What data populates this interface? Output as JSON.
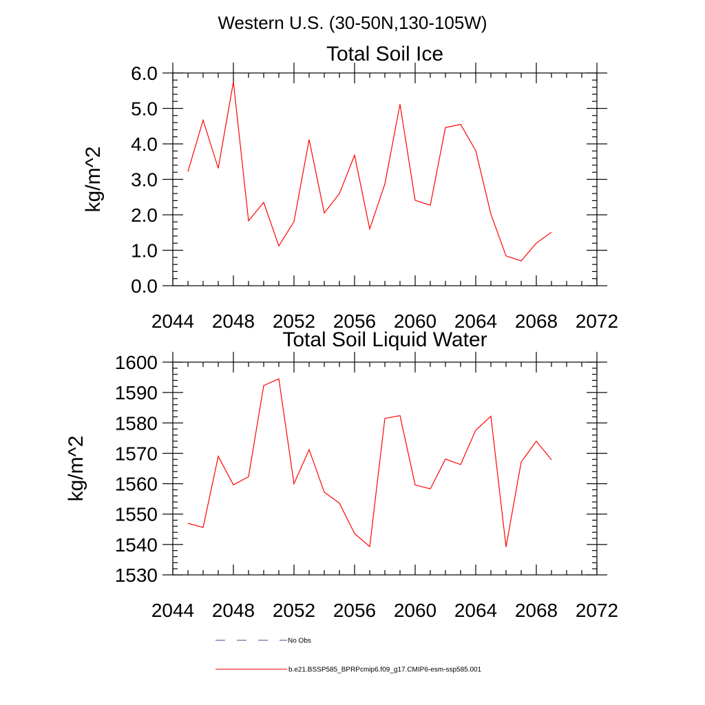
{
  "figure": {
    "title": "Western U.S. (30-50N,130-105W)"
  },
  "chart_data": [
    {
      "type": "line",
      "title": "Total Soil Ice",
      "xlabel": "",
      "ylabel": "kg/m^2",
      "xlim": [
        2044,
        2072
      ],
      "ylim": [
        0,
        6
      ],
      "xticks": [
        2044,
        2048,
        2052,
        2056,
        2060,
        2064,
        2068,
        2072
      ],
      "yticks": [
        0,
        1,
        2,
        3,
        4,
        5,
        6
      ],
      "ytick_labels": [
        "0.0",
        "1.0",
        "2.0",
        "3.0",
        "4.0",
        "5.0",
        "6.0"
      ],
      "x": [
        2045,
        2046,
        2047,
        2048,
        2049,
        2050,
        2051,
        2052,
        2053,
        2054,
        2055,
        2056,
        2057,
        2058,
        2059,
        2060,
        2061,
        2062,
        2063,
        2064,
        2065,
        2066,
        2067,
        2068,
        2069
      ],
      "series": [
        {
          "color": "#ff0000",
          "values": [
            3.22,
            4.67,
            3.31,
            5.75,
            1.83,
            2.35,
            1.12,
            1.81,
            4.12,
            2.05,
            2.6,
            3.68,
            1.6,
            2.87,
            5.12,
            2.41,
            2.27,
            4.46,
            4.55,
            3.81,
            2.02,
            0.84,
            0.7,
            1.2,
            1.51
          ]
        }
      ],
      "grid": false
    },
    {
      "type": "line",
      "title": "Total Soil Liquid Water",
      "xlabel": "",
      "ylabel": "kg/m^2",
      "xlim": [
        2044,
        2072
      ],
      "ylim": [
        1530,
        1600
      ],
      "xticks": [
        2044,
        2048,
        2052,
        2056,
        2060,
        2064,
        2068,
        2072
      ],
      "yticks": [
        1530,
        1540,
        1550,
        1560,
        1570,
        1580,
        1590,
        1600
      ],
      "ytick_labels": [
        "1530",
        "1540",
        "1550",
        "1560",
        "1570",
        "1580",
        "1590",
        "1600"
      ],
      "x": [
        2045,
        2046,
        2047,
        2048,
        2049,
        2050,
        2051,
        2052,
        2053,
        2054,
        2055,
        2056,
        2057,
        2058,
        2059,
        2060,
        2061,
        2062,
        2063,
        2064,
        2065,
        2066,
        2067,
        2068,
        2069
      ],
      "series": [
        {
          "color": "#ff0000",
          "values": [
            1547.0,
            1545.6,
            1569.0,
            1559.6,
            1562.3,
            1592.3,
            1594.5,
            1560.0,
            1571.2,
            1557.2,
            1553.6,
            1543.6,
            1539.3,
            1581.5,
            1582.4,
            1559.6,
            1558.3,
            1568.1,
            1566.3,
            1577.6,
            1582.2,
            1539.2,
            1567.1,
            1574.0,
            1567.9
          ]
        }
      ],
      "grid": false
    }
  ],
  "legend": {
    "placement": "bottom",
    "entries": [
      {
        "label": "No Obs",
        "color": "#44448a",
        "style": "dashed"
      },
      {
        "label": "b.e21.BSSP585_BPRPcmip6.f09_g17.CMIP6-esm-ssp585.001",
        "color": "#ff0000",
        "style": "solid"
      }
    ]
  }
}
